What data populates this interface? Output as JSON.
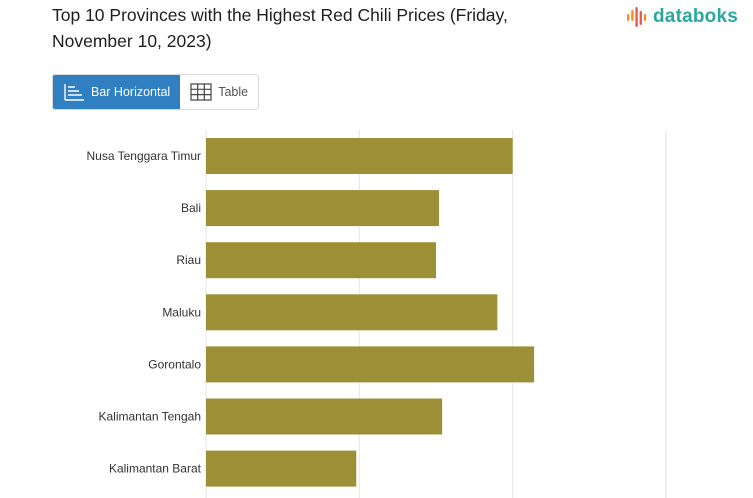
{
  "header": {
    "title": "Top 10 Provinces with the Highest Red Chili Prices (Friday, November 10, 2023)"
  },
  "logo": {
    "text": "databoks",
    "colors": [
      "#f08c2a",
      "#e35d4a",
      "#2aa7a0"
    ]
  },
  "view_toggle": {
    "bar_label": "Bar Horizontal",
    "table_label": "Table",
    "active": "bar"
  },
  "colors": {
    "bar": "#9d8f35",
    "accent": "#2f7fc1",
    "grid": "#e6e6e6"
  },
  "chart_data": {
    "type": "bar",
    "orientation": "horizontal",
    "categories": [
      "Nusa Tenggara Timur",
      "Bali",
      "Riau",
      "Maluku",
      "Gorontalo",
      "Kalimantan Tengah",
      "Kalimantan Barat"
    ],
    "values": [
      100,
      76,
      75,
      95,
      107,
      77,
      49
    ],
    "xlim": [
      0,
      150
    ],
    "grid": true,
    "legend": "none"
  }
}
